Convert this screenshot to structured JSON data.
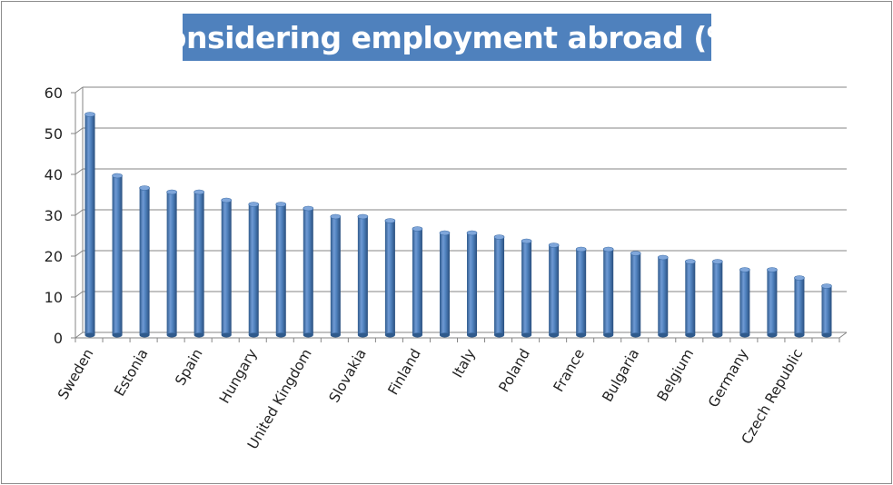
{
  "chart_data": {
    "type": "bar",
    "title": "Considering employment abroad (%)",
    "categories": [
      "Sweden",
      "",
      "Estonia",
      "",
      "Spain",
      "",
      "Hungary",
      "",
      "United Kingdom",
      "",
      "Slovakia",
      "",
      "Finland",
      "",
      "Italy",
      "",
      "Poland",
      "",
      "France",
      "",
      "Bulgaria",
      "",
      "Belgium",
      "",
      "Germany",
      "",
      "Czech Republic",
      ""
    ],
    "values": [
      54,
      39,
      36,
      35,
      35,
      33,
      32,
      32,
      31,
      29,
      29,
      28,
      26,
      25,
      25,
      24,
      23,
      22,
      21,
      21,
      20,
      19,
      18,
      18,
      16,
      16,
      14,
      12
    ],
    "ylim": [
      0,
      60
    ],
    "yticks": [
      0,
      10,
      20,
      30,
      40,
      50,
      60
    ],
    "grid": true,
    "legend": "none",
    "bar_color": "#4f81bd"
  }
}
